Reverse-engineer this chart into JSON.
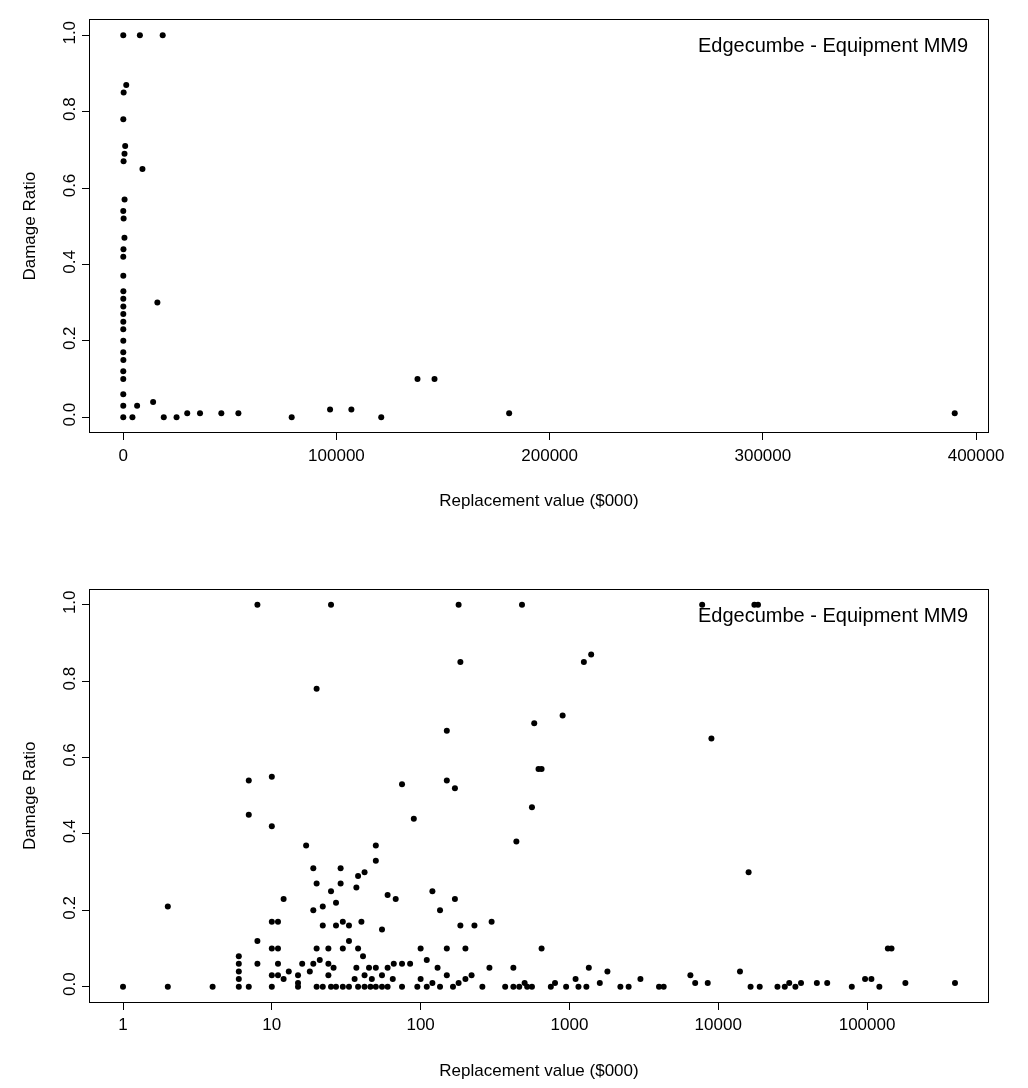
{
  "chart_data": [
    {
      "type": "scatter",
      "xlabel": "Replacement value ($000)",
      "ylabel": "Damage Ratio",
      "annotations": [
        "Edgecumbe - Equipment MM9"
      ],
      "color": "#000000",
      "marker": "circle",
      "x": [
        1,
        10,
        6,
        10,
        8,
        55,
        10,
        19,
        12,
        25,
        20,
        38,
        19,
        50,
        17,
        10,
        90,
        560,
        170,
        7,
        620,
        150,
        580,
        900,
        20,
        185,
        1400,
        8,
        4300,
        6500,
        9000,
        14000,
        16000,
        19000,
        25000,
        30000,
        36000,
        46000,
        54000,
        79000,
        97000,
        107000,
        121000,
        138000,
        146000,
        181000,
        390000,
        7800,
        18500
      ],
      "values": [
        0,
        0.03,
        0.06,
        0.1,
        0.12,
        0.15,
        0.17,
        0.2,
        0.23,
        0.25,
        0.27,
        0.29,
        0.31,
        0.33,
        0.37,
        0.42,
        0.44,
        0.47,
        0.52,
        0.54,
        0.57,
        0.67,
        0.69,
        0.71,
        0.78,
        0.85,
        0.87,
        1,
        0,
        0.03,
        0.65,
        0.04,
        0.3,
        0,
        0,
        0.01,
        0.01,
        0.01,
        0.01,
        0,
        0.02,
        0.02,
        0,
        0.1,
        0.1,
        0.01,
        0.01,
        1,
        1
      ],
      "xlim": [
        -15600,
        405600
      ],
      "xticks": [
        0,
        100000,
        200000,
        300000,
        400000
      ],
      "ylim": [
        -0.04,
        1.04
      ],
      "yticks": [
        {
          "value": 0,
          "label": "0.0"
        },
        {
          "value": 0.2,
          "label": "0.2"
        },
        {
          "value": 0.4,
          "label": "0.4"
        },
        {
          "value": 0.6,
          "label": "0.6"
        },
        {
          "value": 0.8,
          "label": "0.8"
        },
        {
          "value": 1,
          "label": "1.0"
        }
      ]
    },
    {
      "type": "scatter",
      "xlabel": "Replacement value ($000)",
      "ylabel": "Damage Ratio",
      "annotations": [
        "Edgecumbe - Equipment MM9"
      ],
      "color": "#000000",
      "marker": "circle",
      "log": "x",
      "x": [
        1,
        2,
        2,
        4,
        6,
        6,
        6,
        6,
        6,
        7,
        7,
        7,
        8,
        8,
        8,
        10,
        10,
        10,
        10,
        10,
        10,
        11,
        11,
        11,
        11,
        12,
        12,
        13,
        17,
        16,
        15,
        15,
        15,
        20,
        19,
        20,
        19,
        20,
        19,
        18,
        20,
        22,
        22,
        21,
        22,
        25,
        25,
        24,
        24,
        24,
        25,
        27,
        27,
        26,
        27,
        29,
        29,
        30,
        30,
        30,
        33,
        33,
        33,
        38,
        37,
        38,
        37,
        36,
        38,
        42,
        40,
        41,
        42,
        42,
        45,
        47,
        46,
        50,
        50,
        50,
        50,
        55,
        55,
        55,
        60,
        60,
        60,
        68,
        66,
        65,
        75,
        75,
        75,
        90,
        85,
        100,
        100,
        95,
        110,
        110,
        120,
        120,
        135,
        130,
        135,
        150,
        150,
        150,
        150,
        170,
        170,
        165,
        180,
        185,
        185,
        180,
        200,
        200,
        230,
        220,
        260,
        300,
        290,
        370,
        420,
        420,
        440,
        460,
        480,
        520,
        500,
        560,
        560,
        580,
        620,
        650,
        650,
        750,
        800,
        900,
        950,
        1100,
        1150,
        1250,
        1400,
        1350,
        1300,
        1600,
        1800,
        2200,
        2500,
        3000,
        4000,
        4300,
        6500,
        7000,
        7800,
        8500,
        9000,
        16000,
        16500,
        14000,
        17500,
        18500,
        19000,
        25000,
        28000,
        30000,
        33000,
        36000,
        46000,
        54000,
        79000,
        97000,
        107000,
        121000,
        138000,
        146000,
        181000,
        390000
      ],
      "values": [
        0,
        0,
        0.21,
        0,
        0.08,
        0.06,
        0.04,
        0.02,
        0,
        0.54,
        0.45,
        0,
        1,
        0.12,
        0.06,
        0.55,
        0.42,
        0.17,
        0.1,
        0.03,
        0,
        0.17,
        0.1,
        0.06,
        0.03,
        0.23,
        0.02,
        0.04,
        0.37,
        0.06,
        0.03,
        0.01,
        0,
        0.78,
        0.31,
        0.27,
        0.2,
        0.1,
        0.06,
        0.04,
        0,
        0.21,
        0.16,
        0.07,
        0,
        1,
        0.25,
        0.1,
        0.06,
        0.03,
        0,
        0.22,
        0.16,
        0.05,
        0,
        0.31,
        0.27,
        0.17,
        0.1,
        0,
        0.16,
        0.12,
        0,
        0.29,
        0.26,
        0.1,
        0.05,
        0.02,
        0,
        0.3,
        0.17,
        0.08,
        0.03,
        0,
        0.05,
        0.02,
        0,
        0.37,
        0.33,
        0.05,
        0,
        0.15,
        0.03,
        0,
        0.24,
        0.05,
        0,
        0.23,
        0.06,
        0.02,
        0.53,
        0.06,
        0,
        0.44,
        0.06,
        0.1,
        0.02,
        0,
        0.07,
        0,
        0.25,
        0.01,
        0.2,
        0.05,
        0,
        0.67,
        0.54,
        0.1,
        0.03,
        0.52,
        0.23,
        0,
        1,
        0.85,
        0.16,
        0.01,
        0.1,
        0.02,
        0.16,
        0.03,
        0,
        0.17,
        0.05,
        0,
        0.05,
        0,
        0.38,
        0,
        1,
        0,
        0.01,
        0,
        0.47,
        0.69,
        0.57,
        0.57,
        0.1,
        0,
        0.01,
        0.71,
        0,
        0.02,
        0,
        0.85,
        0.87,
        0.05,
        0,
        0.01,
        0.04,
        0,
        0,
        0.02,
        0,
        0,
        0.03,
        0.01,
        1,
        0.01,
        0.65,
        0.3,
        0,
        0.04,
        1,
        1,
        0,
        0,
        0,
        0.01,
        0,
        0.01,
        0.01,
        0.01,
        0,
        0.02,
        0.02,
        0,
        0.1,
        0.1,
        0.01,
        0.01
      ],
      "xlim": [
        0.6,
        650000
      ],
      "xticks": [
        1,
        10,
        100,
        1000,
        10000,
        100000
      ],
      "ylim": [
        -0.04,
        1.04
      ],
      "yticks": [
        {
          "value": 0,
          "label": "0.0"
        },
        {
          "value": 0.2,
          "label": "0.2"
        },
        {
          "value": 0.4,
          "label": "0.4"
        },
        {
          "value": 0.6,
          "label": "0.6"
        },
        {
          "value": 0.8,
          "label": "0.8"
        },
        {
          "value": 1,
          "label": "1.0"
        }
      ]
    }
  ]
}
